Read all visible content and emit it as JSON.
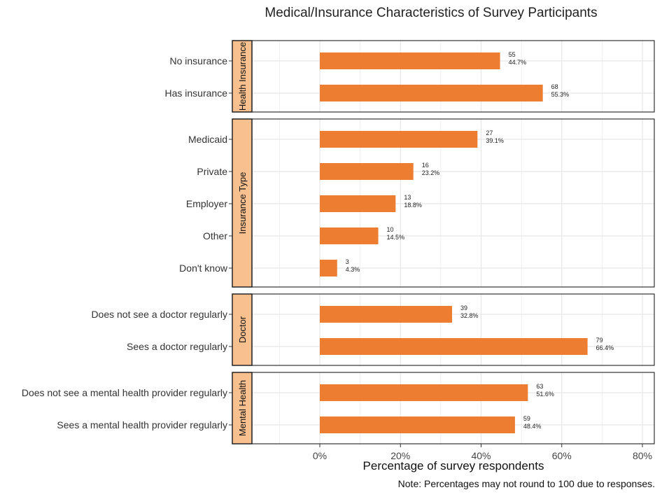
{
  "chart_data": {
    "type": "bar",
    "orientation": "horizontal",
    "title": "Medical/Insurance Characteristics of Survey Participants",
    "xlabel": "Percentage of survey respondents",
    "ylabel": "",
    "note": "Note: Percentages may not round to 100 due to responses.",
    "xlim": [
      -16.8,
      83
    ],
    "xticks": [
      "0%",
      "20%",
      "40%",
      "60%",
      "80%"
    ],
    "xtick_values": [
      0,
      20,
      40,
      60,
      80
    ],
    "grid": true,
    "colors": {
      "bar": "#ED7D31",
      "strip": "#F9C08F",
      "grid": "#E6E6E6"
    },
    "panels": [
      {
        "name": "Health Insurance",
        "categories": [
          "No insurance",
          "Has insurance"
        ],
        "counts": [
          55,
          68
        ],
        "values": [
          44.7,
          55.3
        ],
        "labels": [
          "44.7%",
          "55.3%"
        ]
      },
      {
        "name": "Insurance Type",
        "categories": [
          "Medicaid",
          "Private",
          "Employer",
          "Other",
          "Don't know"
        ],
        "counts": [
          27,
          16,
          13,
          10,
          3
        ],
        "values": [
          39.1,
          23.2,
          18.8,
          14.5,
          4.3
        ],
        "labels": [
          "39.1%",
          "23.2%",
          "18.8%",
          "14.5%",
          "4.3%"
        ]
      },
      {
        "name": "Doctor",
        "categories": [
          "Does not see a doctor regularly",
          "Sees a doctor regularly"
        ],
        "counts": [
          39,
          79
        ],
        "values": [
          32.8,
          66.4
        ],
        "labels": [
          "32.8%",
          "66.4%"
        ]
      },
      {
        "name": "Mental Health",
        "categories": [
          "Does not see a mental health provider regularly",
          "Sees a mental health provider regularly"
        ],
        "counts": [
          63,
          59
        ],
        "values": [
          51.6,
          48.4
        ],
        "labels": [
          "51.6%",
          "48.4%"
        ]
      }
    ]
  }
}
